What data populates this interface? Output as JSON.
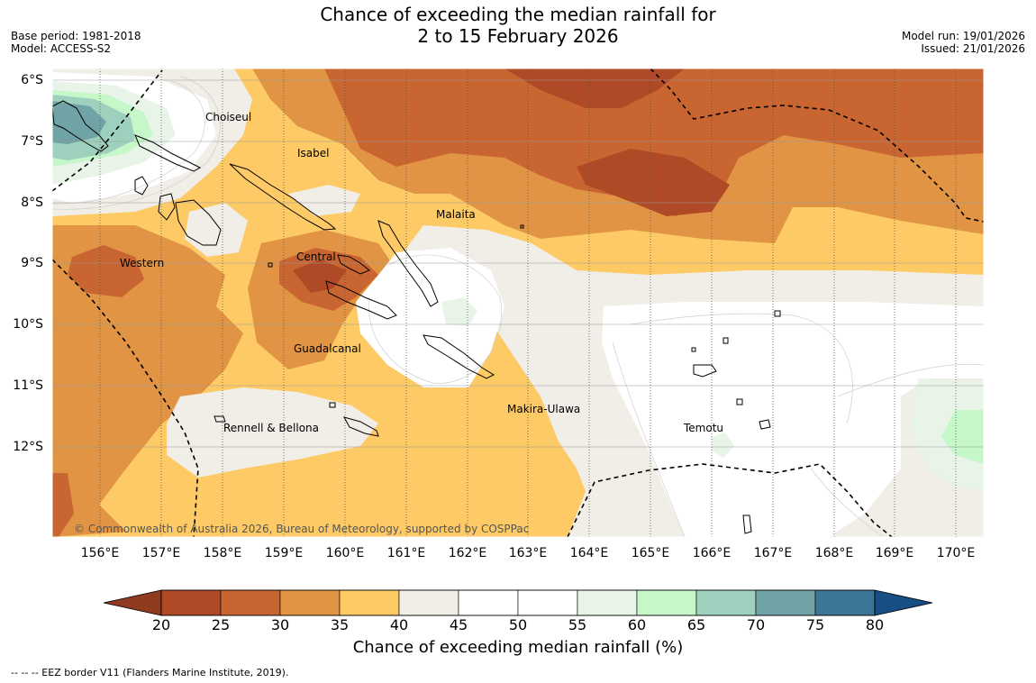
{
  "title": {
    "line1": "Chance of exceeding the median rainfall for",
    "line2": "2 to 15 February 2026"
  },
  "info_left": {
    "base_period": "Base period: 1981-2018",
    "model": "Model: ACCESS-S2"
  },
  "info_right": {
    "model_run": "Model run: 19/01/2026",
    "issued": "Issued: 21/01/2026"
  },
  "map": {
    "lat_labels": [
      "6°S",
      "7°S",
      "8°S",
      "9°S",
      "10°S",
      "11°S",
      "12°S"
    ],
    "lon_labels": [
      "156°E",
      "157°E",
      "158°E",
      "159°E",
      "160°E",
      "161°E",
      "162°E",
      "163°E",
      "164°E",
      "165°E",
      "166°E",
      "167°E",
      "168°E",
      "169°E",
      "170°E"
    ],
    "places": {
      "choiseul": "Choiseul",
      "isabel": "Isabel",
      "malaita": "Malaita",
      "western": "Western",
      "central": "Central",
      "guadalcanal": "Guadalcanal",
      "makira": "Makira-Ulawa",
      "rennell": "Rennell & Bellona",
      "temotu": "Temotu"
    },
    "copyright": "© Commonwealth of Australia 2026, Bureau of Meteorology, supported by COSPPac"
  },
  "colorbar": {
    "ticks": [
      "20",
      "25",
      "30",
      "35",
      "40",
      "45",
      "50",
      "55",
      "60",
      "65",
      "70",
      "75",
      "80"
    ],
    "colors": [
      "#b04a26",
      "#c96531",
      "#e09444",
      "#fdca65",
      "#f1ede7",
      "#ffffff",
      "#ffffff",
      "#e8f4e8",
      "#c6f7c9",
      "#9dd1be",
      "#6fa3a6",
      "#3c7596"
    ],
    "low_extend_color": "#8e3b1f",
    "high_extend_color": "#174f85",
    "label": "Chance of exceeding median rainfall (%)"
  },
  "footnote": "--  --  -- EEZ border V11 (Flanders Marine Institute, 2019)."
}
